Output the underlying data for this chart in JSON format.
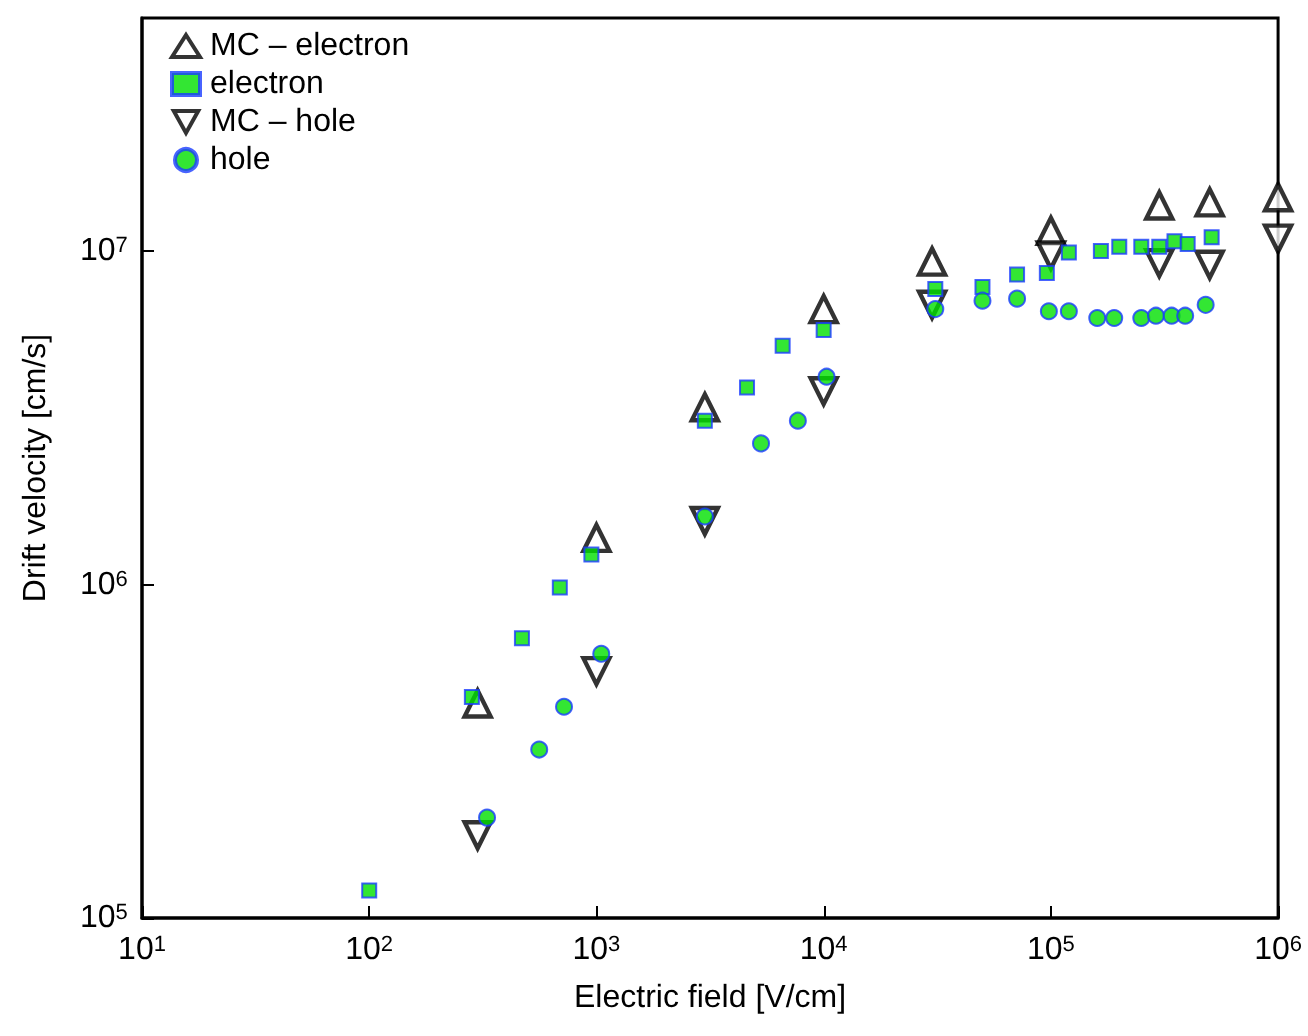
{
  "chart_data": {
    "type": "scatter",
    "xlabel": "Electric field [V/cm]",
    "ylabel": "Drift velocity [cm/s]",
    "log": "xy",
    "grid": false,
    "legend": "top left",
    "xlim": [
      10,
      1000000
    ],
    "ylim": [
      100000,
      50000000
    ],
    "xticks": [
      {
        "value": 10,
        "label": "10$^{1}$"
      },
      {
        "value": 100,
        "label": "10$^{2}$"
      },
      {
        "value": 1000,
        "label": "10$^{3}$"
      },
      {
        "value": 10000,
        "label": "10$^{4}$"
      },
      {
        "value": 100000,
        "label": "10$^{5}$"
      },
      {
        "value": 1000000,
        "label": "10$^{6}$"
      }
    ],
    "yticks": [
      {
        "value": 100000,
        "label": "10$^{5}$"
      },
      {
        "value": 1000000,
        "label": "10$^{6}$"
      },
      {
        "value": 10000000,
        "label": "10$^{7}$"
      }
    ],
    "series": [
      {
        "name": "MC – electron",
        "color": "#000000",
        "marker": "triangle",
        "x": [
          300,
          1000,
          3000,
          10000,
          30000,
          100000,
          300000,
          500000,
          1000000
        ],
        "values": [
          440000,
          1380000,
          3400000,
          6700000,
          9300000,
          11500000,
          13700000,
          14000000,
          14500000
        ]
      },
      {
        "name": "electron",
        "color": "#00e000",
        "marker": "square",
        "x": [
          100,
          283,
          470,
          690,
          950,
          3000,
          4600,
          6600,
          10000,
          31000,
          50000,
          71000,
          96000,
          120000,
          166000,
          200000,
          250000,
          300000,
          350000,
          400000,
          510000
        ],
        "values": [
          121000,
          460000,
          690000,
          980000,
          1230000,
          3100000,
          3900000,
          5200000,
          5800000,
          7700000,
          7800000,
          8500000,
          8600000,
          9900000,
          10000000,
          10300000,
          10300000,
          10300000,
          10700000,
          10500000,
          11000000
        ]
      },
      {
        "name": "MC – hole",
        "color": "#000000",
        "marker": "triangle-down",
        "x": [
          300,
          1000,
          3000,
          10000,
          30000,
          100000,
          300000,
          500000,
          1000000
        ],
        "values": [
          177000,
          550000,
          1550000,
          3800000,
          6900000,
          9700000,
          9200000,
          9100000,
          10900000
        ]
      },
      {
        "name": "hole",
        "color": "#00e000",
        "marker": "circle",
        "x": [
          330,
          560,
          720,
          1050,
          3000,
          5300,
          7700,
          10300,
          31000,
          50000,
          71000,
          98000,
          120000,
          160000,
          190000,
          250000,
          290000,
          340000,
          390000,
          480000
        ],
        "values": [
          200000,
          320000,
          430000,
          620000,
          1600000,
          2650000,
          3100000,
          4200000,
          6700000,
          7100000,
          7200000,
          6600000,
          6600000,
          6300000,
          6300000,
          6300000,
          6400000,
          6400000,
          6400000,
          6900000
        ]
      }
    ]
  }
}
